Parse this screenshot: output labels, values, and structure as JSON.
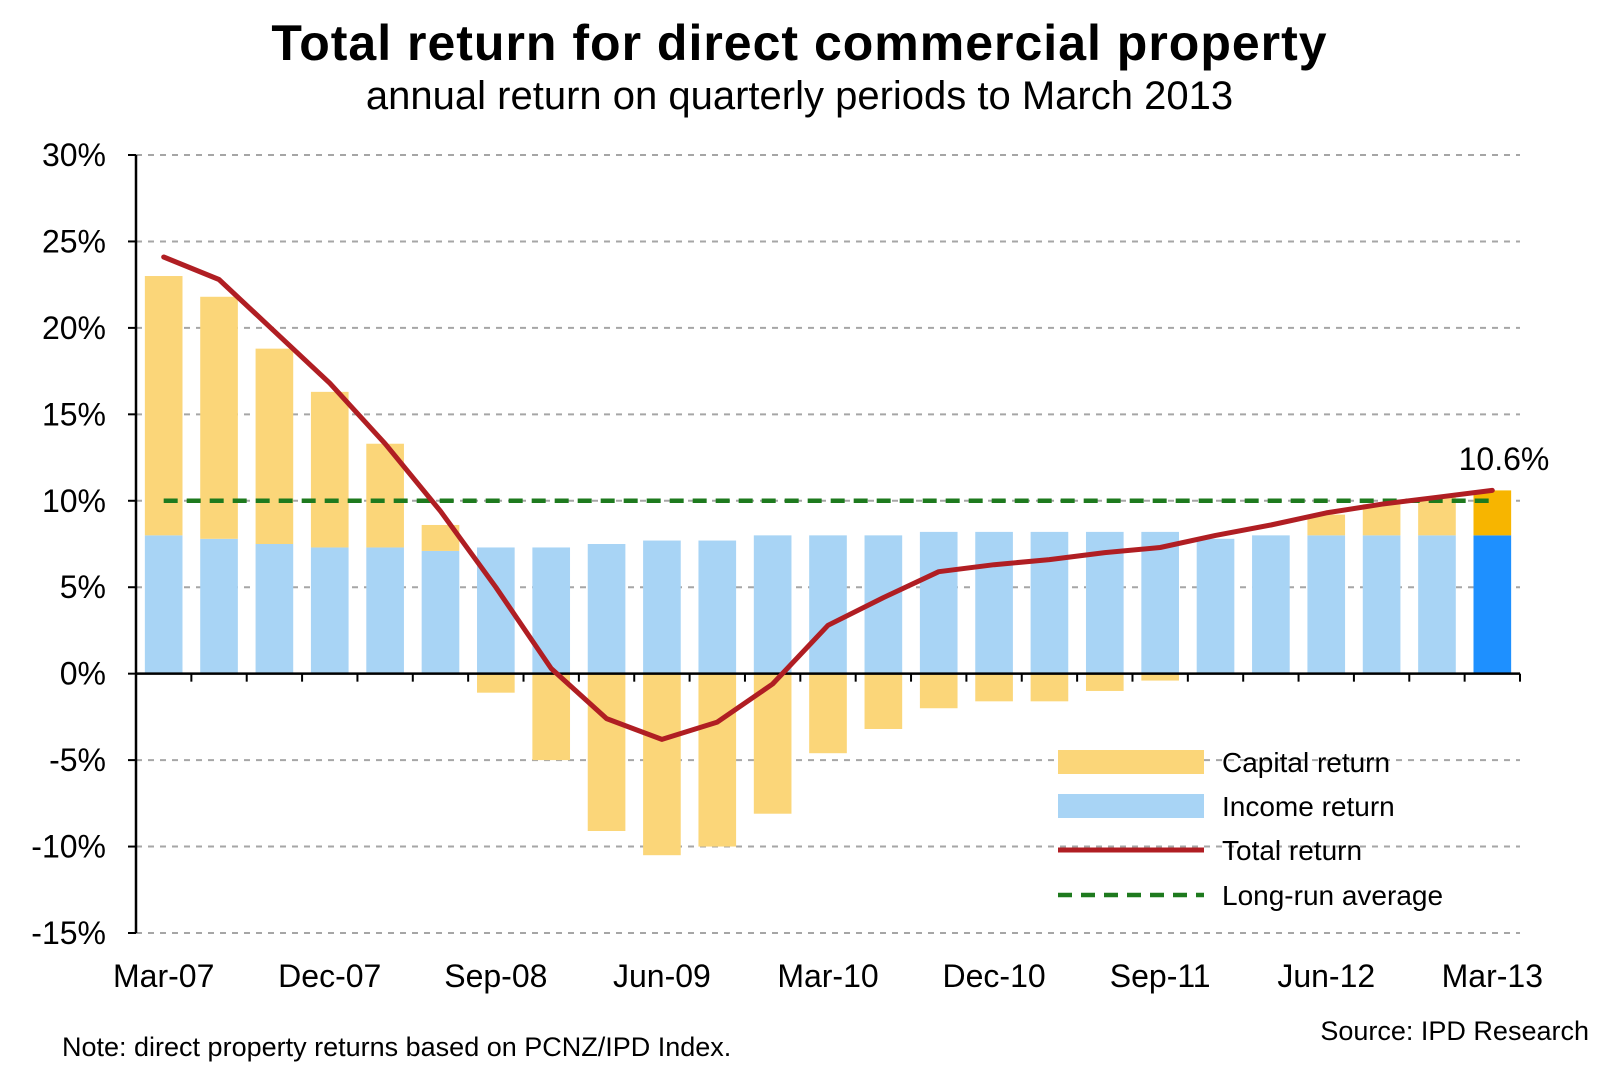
{
  "chart_data": {
    "type": "bar",
    "title": "Total return for direct commercial property",
    "subtitle": "annual return on quarterly periods to March 2013",
    "ylim": [
      -15,
      30
    ],
    "y_ticks": [
      30,
      25,
      20,
      15,
      10,
      5,
      0,
      -5,
      -10,
      -15
    ],
    "y_tick_labels": [
      "30%",
      "25%",
      "20%",
      "15%",
      "10%",
      "5%",
      "0%",
      "-5%",
      "-10%",
      "-15%"
    ],
    "grid": true,
    "stacked": true,
    "categories": [
      "Mar-07",
      "Jun-07",
      "Sep-07",
      "Dec-07",
      "Mar-08",
      "Jun-08",
      "Sep-08",
      "Dec-08",
      "Mar-09",
      "Jun-09",
      "Sep-09",
      "Dec-09",
      "Mar-10",
      "Jun-10",
      "Sep-10",
      "Dec-10",
      "Mar-11",
      "Jun-11",
      "Sep-11",
      "Dec-11",
      "Mar-12",
      "Jun-12",
      "Sep-12",
      "Dec-12",
      "Mar-13"
    ],
    "x_tick_labels": [
      "Mar-07",
      "Dec-07",
      "Sep-08",
      "Jun-09",
      "Mar-10",
      "Dec-10",
      "Sep-11",
      "Jun-12",
      "Mar-13"
    ],
    "series": [
      {
        "name": "Capital return",
        "kind": "bar",
        "color": "#FBD679",
        "values": [
          15.0,
          14.0,
          11.3,
          9.0,
          6.0,
          1.5,
          -1.1,
          -5.0,
          -9.1,
          -10.5,
          -10.0,
          -8.1,
          -4.6,
          -3.2,
          -2.0,
          -1.6,
          -1.6,
          -1.0,
          -0.4,
          0.0,
          0.0,
          1.2,
          1.8,
          2.2,
          2.6
        ]
      },
      {
        "name": "Income return",
        "kind": "bar",
        "color": "#A8D4F5",
        "values": [
          8.0,
          7.8,
          7.5,
          7.3,
          7.3,
          7.1,
          7.3,
          7.3,
          7.5,
          7.7,
          7.7,
          8.0,
          8.0,
          8.0,
          8.2,
          8.2,
          8.2,
          8.2,
          8.2,
          7.8,
          8.0,
          8.0,
          8.0,
          8.0,
          8.0
        ]
      },
      {
        "name": "Total return",
        "kind": "line",
        "color": "#B01E23",
        "values": [
          24.1,
          22.8,
          19.8,
          16.8,
          13.3,
          9.4,
          5.0,
          0.3,
          -2.6,
          -3.8,
          -2.8,
          -0.6,
          2.8,
          4.4,
          5.9,
          6.3,
          6.6,
          7.0,
          7.3,
          8.0,
          8.6,
          9.3,
          9.8,
          10.2,
          10.6
        ]
      },
      {
        "name": "Long-run average",
        "kind": "dashed-line",
        "color": "#1E7A1E",
        "value": 10.0
      }
    ],
    "highlight": {
      "category": "Mar-13",
      "income_color": "#1E90FF",
      "capital_color": "#F7B500"
    },
    "callout_label": "10.6%",
    "legend_placement": "bottom-right"
  },
  "note": "Note: direct property returns based on PCNZ/IPD Index.",
  "source": "Source: IPD Research"
}
